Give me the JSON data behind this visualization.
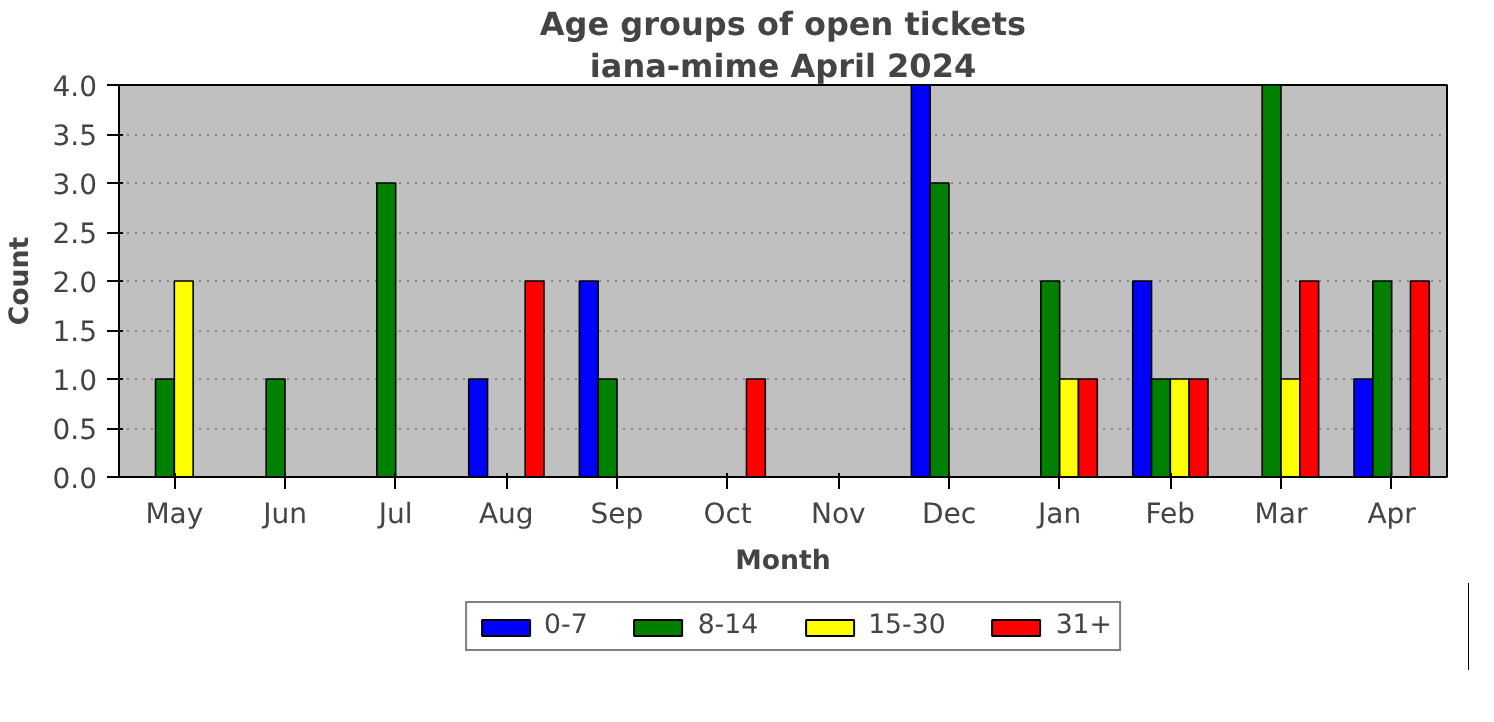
{
  "chart_data": {
    "type": "bar",
    "title": "Age groups of open tickets",
    "subtitle": "iana-mime April 2024",
    "xlabel": "Month",
    "ylabel": "Count",
    "categories": [
      "May",
      "Jun",
      "Jul",
      "Aug",
      "Sep",
      "Oct",
      "Nov",
      "Dec",
      "Jan",
      "Feb",
      "Mar",
      "Apr"
    ],
    "series": [
      {
        "name": "0-7",
        "color": "#0000ff",
        "values": [
          0,
          0,
          0,
          1,
          2,
          0,
          0,
          4,
          0,
          2,
          0,
          1
        ]
      },
      {
        "name": "8-14",
        "color": "#008000",
        "values": [
          1,
          1,
          3,
          0,
          1,
          0,
          0,
          3,
          2,
          1,
          4,
          2
        ]
      },
      {
        "name": "15-30",
        "color": "#ffff00",
        "values": [
          2,
          0,
          0,
          0,
          0,
          0,
          0,
          0,
          1,
          1,
          1,
          0
        ]
      },
      {
        "name": "31+",
        "color": "#ff0000",
        "values": [
          0,
          0,
          0,
          2,
          0,
          1,
          0,
          0,
          1,
          1,
          2,
          2
        ]
      }
    ],
    "ylim": [
      0,
      4
    ],
    "yticks": [
      {
        "value": 0,
        "label": "0.0"
      },
      0.5,
      {
        "value": 1,
        "label": "1.0"
      },
      1.5,
      {
        "value": 2,
        "label": "2.0"
      },
      2.5,
      {
        "value": 3,
        "label": "3.0"
      },
      3.5,
      {
        "value": 4,
        "label": "4.0"
      }
    ],
    "grid": "y",
    "legend": "bottom"
  }
}
